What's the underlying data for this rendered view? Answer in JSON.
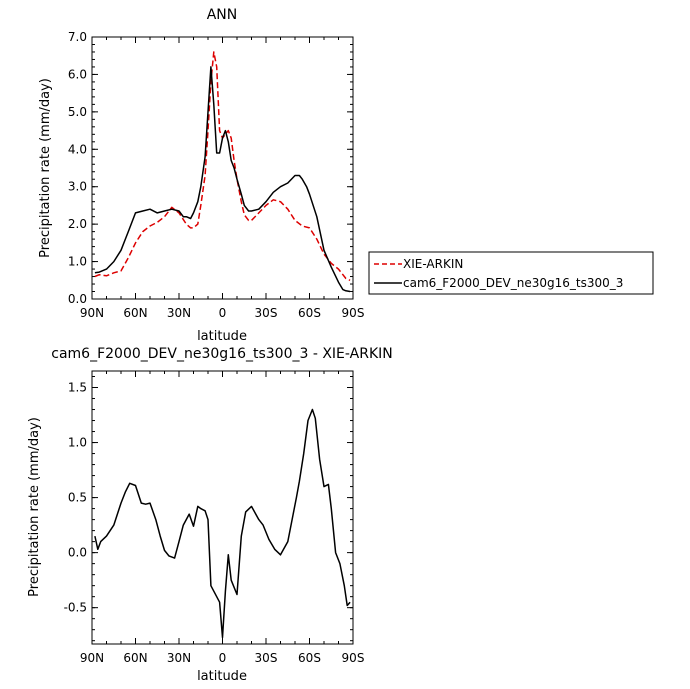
{
  "chart_data": [
    {
      "type": "line",
      "title": "ANN",
      "xlabel": "latitude",
      "ylabel": "Precipitation rate (mm/day)",
      "xlim": [
        90,
        -90
      ],
      "ylim": [
        0,
        7
      ],
      "x_ticks": [
        90,
        60,
        30,
        0,
        -30,
        -60,
        -90
      ],
      "x_tick_labels": [
        "90N",
        "60N",
        "30N",
        "0",
        "30S",
        "60S",
        "90S"
      ],
      "y_ticks": [
        0,
        1,
        2,
        3,
        4,
        5,
        6,
        7
      ],
      "y_tick_labels": [
        "0.0",
        "1.0",
        "2.0",
        "3.0",
        "4.0",
        "5.0",
        "6.0",
        "7.0"
      ],
      "legend_position": "right",
      "series": [
        {
          "name": "XIE-ARKIN",
          "color": "#dd0000",
          "dash": "dashed",
          "x": [
            88,
            85,
            80,
            75,
            70,
            65,
            60,
            55,
            50,
            45,
            40,
            35,
            30,
            25,
            22,
            20,
            17,
            15,
            12,
            10,
            8,
            6,
            4,
            2,
            0,
            -2,
            -4,
            -6,
            -8,
            -10,
            -13,
            -15,
            -18,
            -20,
            -25,
            -30,
            -35,
            -40,
            -45,
            -50,
            -55,
            -60,
            -65,
            -70,
            -75,
            -80,
            -85,
            -88
          ],
          "y": [
            0.6,
            0.65,
            0.62,
            0.7,
            0.75,
            1.1,
            1.5,
            1.8,
            1.95,
            2.05,
            2.2,
            2.45,
            2.3,
            2.0,
            1.9,
            1.9,
            2.0,
            2.5,
            3.3,
            4.5,
            5.8,
            6.6,
            6.2,
            4.5,
            4.3,
            4.4,
            4.5,
            4.3,
            3.7,
            3.2,
            2.6,
            2.25,
            2.1,
            2.1,
            2.3,
            2.5,
            2.65,
            2.6,
            2.4,
            2.1,
            1.95,
            1.9,
            1.6,
            1.2,
            0.95,
            0.8,
            0.55,
            0.5
          ]
        },
        {
          "name": "cam6_F2000_DEV_ne30g16_ts300_3",
          "color": "#000000",
          "dash": "solid",
          "x": [
            88,
            85,
            80,
            75,
            70,
            65,
            60,
            55,
            50,
            45,
            40,
            35,
            30,
            27,
            25,
            22,
            20,
            17,
            15,
            12,
            10,
            8,
            6,
            4,
            2,
            0,
            -2,
            -4,
            -6,
            -8,
            -10,
            -13,
            -15,
            -18,
            -20,
            -25,
            -30,
            -35,
            -40,
            -45,
            -50,
            -53,
            -55,
            -58,
            -60,
            -65,
            -70,
            -75,
            -80,
            -83,
            -85,
            -88
          ],
          "y": [
            0.7,
            0.72,
            0.8,
            1.0,
            1.3,
            1.8,
            2.3,
            2.35,
            2.4,
            2.3,
            2.35,
            2.4,
            2.35,
            2.2,
            2.2,
            2.15,
            2.3,
            2.6,
            3.0,
            3.8,
            5.0,
            6.2,
            5.2,
            3.9,
            3.9,
            4.3,
            4.5,
            4.2,
            3.7,
            3.5,
            3.2,
            2.8,
            2.5,
            2.35,
            2.35,
            2.4,
            2.6,
            2.85,
            3.0,
            3.1,
            3.3,
            3.3,
            3.2,
            3.0,
            2.8,
            2.2,
            1.3,
            0.85,
            0.45,
            0.25,
            0.22,
            0.2
          ]
        }
      ]
    },
    {
      "type": "line",
      "title": "cam6_F2000_DEV_ne30g16_ts300_3 - XIE-ARKIN",
      "xlabel": "latitude",
      "ylabel": "Precipitation rate (mm/day)",
      "xlim": [
        90,
        -90
      ],
      "ylim": [
        -0.83,
        1.65
      ],
      "x_ticks": [
        90,
        60,
        30,
        0,
        -30,
        -60,
        -90
      ],
      "x_tick_labels": [
        "90N",
        "60N",
        "30N",
        "0",
        "30S",
        "60S",
        "90S"
      ],
      "y_ticks": [
        -0.5,
        0,
        0.5,
        1.0,
        1.5
      ],
      "y_tick_labels": [
        "-0.5",
        "0.0",
        "0.5",
        "1.0",
        "1.5"
      ],
      "series": [
        {
          "color": "#000000",
          "dash": "solid",
          "x": [
            88,
            86,
            84,
            80,
            75,
            70,
            67,
            64,
            60,
            56,
            53,
            50,
            46,
            43,
            40,
            37,
            33,
            30,
            27,
            23,
            20,
            17,
            15,
            12,
            10,
            8,
            6,
            4,
            2,
            0,
            -2,
            -4,
            -6,
            -10,
            -13,
            -16,
            -20,
            -25,
            -28,
            -32,
            -36,
            -40,
            -45,
            -48,
            -51,
            -53,
            -56,
            -59,
            -62,
            -64,
            -67,
            -70,
            -73,
            -75,
            -78,
            -81,
            -84,
            -86,
            -88
          ],
          "y": [
            0.15,
            0.03,
            0.1,
            0.15,
            0.25,
            0.45,
            0.55,
            0.63,
            0.61,
            0.45,
            0.44,
            0.45,
            0.3,
            0.15,
            0.02,
            -0.03,
            -0.05,
            0.1,
            0.25,
            0.35,
            0.24,
            0.42,
            0.4,
            0.38,
            0.3,
            -0.3,
            -0.35,
            -0.4,
            -0.45,
            -0.77,
            -0.35,
            -0.02,
            -0.25,
            -0.38,
            0.15,
            0.37,
            0.42,
            0.3,
            0.25,
            0.12,
            0.03,
            -0.02,
            0.1,
            0.3,
            0.5,
            0.65,
            0.9,
            1.2,
            1.3,
            1.22,
            0.85,
            0.6,
            0.62,
            0.4,
            0.0,
            -0.1,
            -0.3,
            -0.48,
            -0.45
          ]
        }
      ]
    }
  ]
}
